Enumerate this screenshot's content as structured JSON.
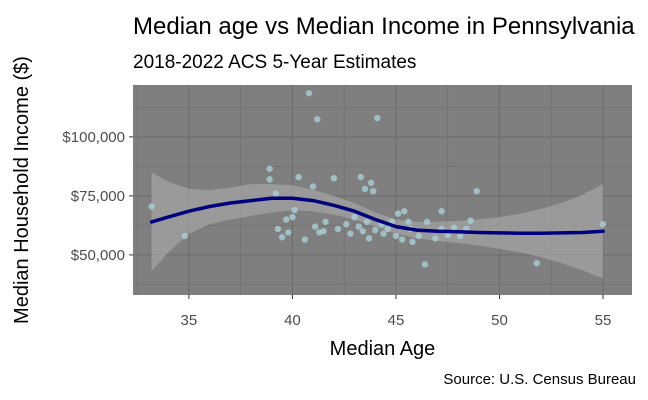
{
  "chart_data": {
    "type": "scatter",
    "title": "Median age vs Median Income in Pennsylvania",
    "subtitle": "2018-2022 ACS 5-Year Estimates",
    "xlabel": "Median Age",
    "ylabel": "Median Household Income ($)",
    "caption": "Source: U.S. Census Bureau",
    "xlim": [
      32.3,
      56.4
    ],
    "ylim": [
      33000,
      122000
    ],
    "x_ticks": [
      35,
      40,
      45,
      50,
      55
    ],
    "x_tick_labels": [
      "35",
      "40",
      "45",
      "50",
      "55"
    ],
    "y_ticks": [
      50000,
      75000,
      100000
    ],
    "y_tick_labels": [
      "$50,000",
      "$75,000",
      "$100,000"
    ],
    "grid": true,
    "legend": "none",
    "colors": {
      "panel": "#7f7f7f",
      "grid": "#6e6e6e",
      "points": "#a9cfd6",
      "smooth_line": "#00007f",
      "confidence_band": "#a3a3a3"
    },
    "points": [
      {
        "x": 33.2,
        "y": 70500
      },
      {
        "x": 34.8,
        "y": 58000
      },
      {
        "x": 38.9,
        "y": 86500
      },
      {
        "x": 38.9,
        "y": 82000
      },
      {
        "x": 39.2,
        "y": 76000
      },
      {
        "x": 39.3,
        "y": 61000
      },
      {
        "x": 39.5,
        "y": 57500
      },
      {
        "x": 39.7,
        "y": 65000
      },
      {
        "x": 39.8,
        "y": 59500
      },
      {
        "x": 40.0,
        "y": 66000
      },
      {
        "x": 40.1,
        "y": 69000
      },
      {
        "x": 40.3,
        "y": 83000
      },
      {
        "x": 40.6,
        "y": 56500
      },
      {
        "x": 40.8,
        "y": 118500
      },
      {
        "x": 41.0,
        "y": 79000
      },
      {
        "x": 41.1,
        "y": 62000
      },
      {
        "x": 41.2,
        "y": 107500
      },
      {
        "x": 41.3,
        "y": 59500
      },
      {
        "x": 41.5,
        "y": 60000
      },
      {
        "x": 41.6,
        "y": 64000
      },
      {
        "x": 42.0,
        "y": 82500
      },
      {
        "x": 42.2,
        "y": 61000
      },
      {
        "x": 42.6,
        "y": 63000
      },
      {
        "x": 42.8,
        "y": 59000
      },
      {
        "x": 43.0,
        "y": 66000
      },
      {
        "x": 43.2,
        "y": 62000
      },
      {
        "x": 43.3,
        "y": 83000
      },
      {
        "x": 43.4,
        "y": 60000
      },
      {
        "x": 43.5,
        "y": 78000
      },
      {
        "x": 43.6,
        "y": 64000
      },
      {
        "x": 43.7,
        "y": 57000
      },
      {
        "x": 43.8,
        "y": 80500
      },
      {
        "x": 43.9,
        "y": 77000
      },
      {
        "x": 44.0,
        "y": 60500
      },
      {
        "x": 44.1,
        "y": 108000
      },
      {
        "x": 44.3,
        "y": 63000
      },
      {
        "x": 44.4,
        "y": 59000
      },
      {
        "x": 44.6,
        "y": 61000
      },
      {
        "x": 44.8,
        "y": 64000
      },
      {
        "x": 45.0,
        "y": 58000
      },
      {
        "x": 45.1,
        "y": 67500
      },
      {
        "x": 45.3,
        "y": 56500
      },
      {
        "x": 45.4,
        "y": 68500
      },
      {
        "x": 45.6,
        "y": 64000
      },
      {
        "x": 45.7,
        "y": 61000
      },
      {
        "x": 45.8,
        "y": 55500
      },
      {
        "x": 46.1,
        "y": 58000
      },
      {
        "x": 46.4,
        "y": 46000
      },
      {
        "x": 46.5,
        "y": 64000
      },
      {
        "x": 46.9,
        "y": 57000
      },
      {
        "x": 47.2,
        "y": 61000
      },
      {
        "x": 47.2,
        "y": 68500
      },
      {
        "x": 47.5,
        "y": 58500
      },
      {
        "x": 47.8,
        "y": 61500
      },
      {
        "x": 48.1,
        "y": 58000
      },
      {
        "x": 48.4,
        "y": 61000
      },
      {
        "x": 48.6,
        "y": 64500
      },
      {
        "x": 48.9,
        "y": 77000
      },
      {
        "x": 51.8,
        "y": 46500
      },
      {
        "x": 55.0,
        "y": 63000
      }
    ],
    "smooth": {
      "x": [
        33.2,
        34,
        35,
        36,
        37,
        38,
        39,
        40,
        41,
        42,
        43,
        44,
        45,
        46,
        47,
        48,
        49,
        50,
        51,
        52,
        53,
        54,
        55
      ],
      "y": [
        64000,
        66000,
        68500,
        70500,
        72000,
        73000,
        74000,
        74000,
        73000,
        71000,
        68500,
        65000,
        62000,
        60500,
        60000,
        59800,
        59500,
        59300,
        59200,
        59200,
        59300,
        59500,
        60000
      ],
      "ymin": [
        43000,
        51000,
        59000,
        63000,
        65000,
        66500,
        68000,
        69000,
        68500,
        67000,
        65000,
        62000,
        59000,
        57000,
        56000,
        55000,
        54000,
        52500,
        51000,
        49000,
        46500,
        43500,
        40000
      ],
      "ymax": [
        85000,
        81000,
        78000,
        77500,
        78500,
        80000,
        80000,
        79500,
        77500,
        75000,
        72000,
        68000,
        65000,
        64000,
        64000,
        64500,
        65000,
        66000,
        67500,
        69500,
        72000,
        75500,
        80000
      ]
    }
  }
}
